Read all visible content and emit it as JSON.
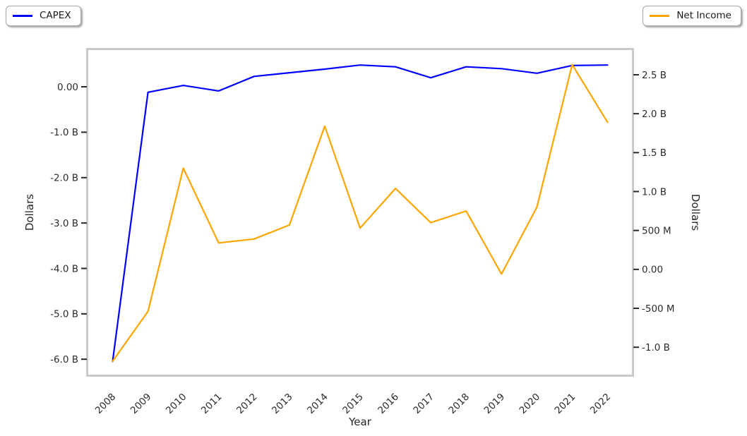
{
  "legend": {
    "capex": "CAPEX",
    "net_income": "Net Income"
  },
  "chart_data": {
    "type": "line",
    "title": "",
    "xlabel": "Year",
    "ylabel_left": "Dollars",
    "ylabel_right": "Dollars",
    "units": "USD (B = billions, M = millions)",
    "grid": false,
    "legend_position": "two fancy boxes with shadow at top-left (CAPEX) and top-right (Net Income) corners of the figure",
    "categories": [
      "2008",
      "2009",
      "2010",
      "2011",
      "2012",
      "2013",
      "2014",
      "2015",
      "2016",
      "2017",
      "2018",
      "2019",
      "2020",
      "2021",
      "2022"
    ],
    "series": [
      {
        "name": "CAPEX",
        "axis": "left",
        "color": "#0000ff",
        "values_billions": [
          -6.05,
          -0.12,
          0.03,
          -0.09,
          0.23,
          0.31,
          0.39,
          0.48,
          0.44,
          0.2,
          0.44,
          0.4,
          0.3,
          0.47,
          0.48
        ]
      },
      {
        "name": "Net Income",
        "axis": "right",
        "color": "#ffa500",
        "values_billions": [
          -1.18,
          -0.54,
          1.3,
          0.34,
          0.39,
          0.57,
          1.84,
          0.53,
          1.04,
          0.6,
          0.75,
          -0.06,
          0.8,
          2.63,
          1.89
        ]
      }
    ],
    "left_axis": {
      "range_billions": [
        -6.37,
        0.84
      ],
      "ticks": [
        {
          "value": 0,
          "label": "0.00"
        },
        {
          "value": -1,
          "label": "-1.0 B"
        },
        {
          "value": -2,
          "label": "-2.0 B"
        },
        {
          "value": -3,
          "label": "-3.0 B"
        },
        {
          "value": -4,
          "label": "-4.0 B"
        },
        {
          "value": -5,
          "label": "-5.0 B"
        },
        {
          "value": -6,
          "label": "-6.0 B"
        }
      ]
    },
    "right_axis": {
      "range_billions": [
        -1.37,
        2.835
      ],
      "ticks": [
        {
          "value": 2.5,
          "label": "2.5 B"
        },
        {
          "value": 2.0,
          "label": "2.0 B"
        },
        {
          "value": 1.5,
          "label": "1.5 B"
        },
        {
          "value": 1.0,
          "label": "1.0 B"
        },
        {
          "value": 0.5,
          "label": "500 M"
        },
        {
          "value": 0,
          "label": "0.00"
        },
        {
          "value": -0.5,
          "label": "-500 M"
        },
        {
          "value": -1.0,
          "label": "-1.0 B"
        }
      ]
    }
  }
}
